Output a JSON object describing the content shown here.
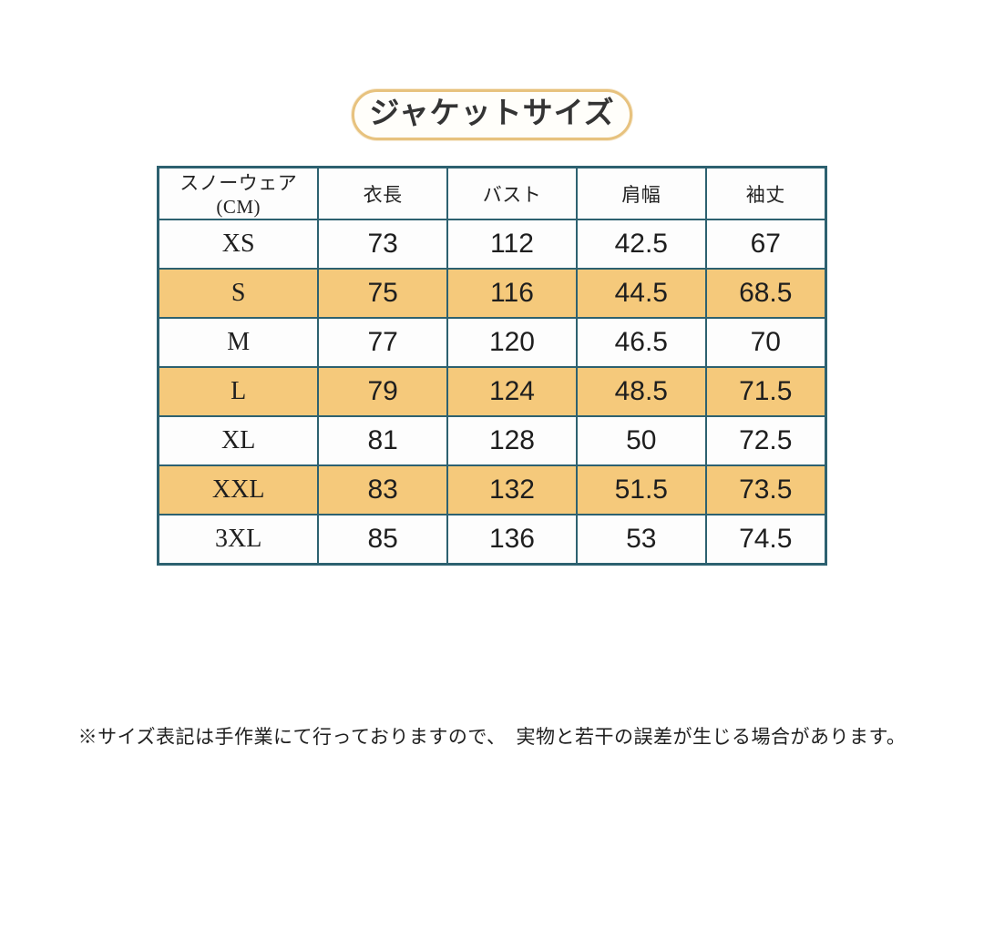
{
  "colors": {
    "table-border": "#2d6170",
    "row-highlight": "#f5c97b",
    "pill-border": "#e7c27e",
    "pill-fill": "#fffefa"
  },
  "title": {
    "label": "ジャケットサイズ"
  },
  "size_chart": {
    "columns": [
      "スノーウェア(CM)",
      "衣長",
      "バスト",
      "肩幅",
      "袖丈"
    ],
    "rows": [
      {
        "size": "XS",
        "highlight": false,
        "values": [
          "73",
          "112",
          "42.5",
          "67"
        ]
      },
      {
        "size": "S",
        "highlight": true,
        "values": [
          "75",
          "116",
          "44.5",
          "68.5"
        ]
      },
      {
        "size": "M",
        "highlight": false,
        "values": [
          "77",
          "120",
          "46.5",
          "70"
        ]
      },
      {
        "size": "L",
        "highlight": true,
        "values": [
          "79",
          "124",
          "48.5",
          "71.5"
        ]
      },
      {
        "size": "XL",
        "highlight": false,
        "values": [
          "81",
          "128",
          "50",
          "72.5"
        ]
      },
      {
        "size": "XXL",
        "highlight": true,
        "values": [
          "83",
          "132",
          "51.5",
          "73.5"
        ]
      },
      {
        "size": "3XL",
        "highlight": false,
        "values": [
          "85",
          "136",
          "53",
          "74.5"
        ]
      }
    ]
  },
  "footnote": {
    "text": "※サイズ表記は手作業にて行っておりますので、　実物と若干の誤差が生じる場合があります。"
  }
}
